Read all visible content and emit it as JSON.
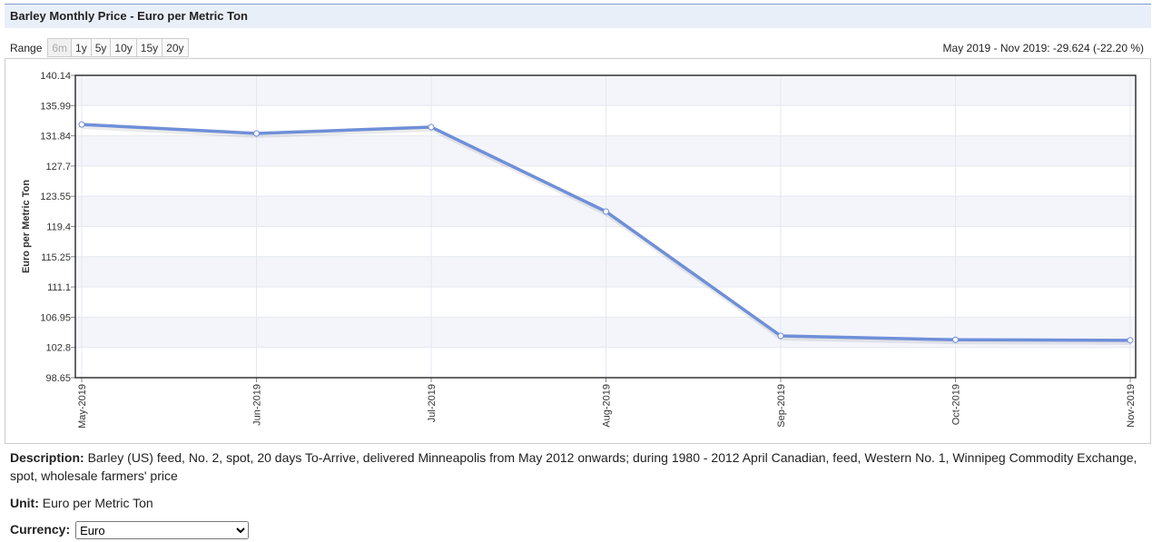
{
  "header": {
    "title": "Barley Monthly Price - Euro per Metric Ton"
  },
  "range": {
    "label": "Range",
    "options": [
      "6m",
      "1y",
      "5y",
      "10y",
      "15y",
      "20y"
    ]
  },
  "change": "May 2019 - Nov 2019: -29.624 (-22.20 %)",
  "chart_data": {
    "type": "line",
    "y_label": "Euro per Metric Ton",
    "categories": [
      "May-2019",
      "Jun-2019",
      "Jul-2019",
      "Aug-2019",
      "Sep-2019",
      "Oct-2019",
      "Nov-2019"
    ],
    "values": [
      133.4,
      132.17,
      133.04,
      121.45,
      104.38,
      103.85,
      103.78
    ],
    "color": "#6f8fd8",
    "ylim": [
      98.65,
      140.14
    ],
    "yticks": [
      98.65,
      102.8,
      106.95,
      111.1,
      115.25,
      119.4,
      123.55,
      127.7,
      131.84,
      135.99,
      140.14
    ],
    "grid": true
  },
  "description": {
    "label": "Description:",
    "text": "Barley (US) feed, No. 2, spot, 20 days To-Arrive, delivered Minneapolis from May 2012 onwards; during 1980 - 2012 April Canadian, feed, Western No. 1, Winnipeg Commodity Exchange, spot, wholesale farmers' price"
  },
  "unit": {
    "label": "Unit:",
    "text": "Euro per Metric Ton"
  },
  "currency": {
    "label": "Currency:",
    "selected": "Euro"
  }
}
